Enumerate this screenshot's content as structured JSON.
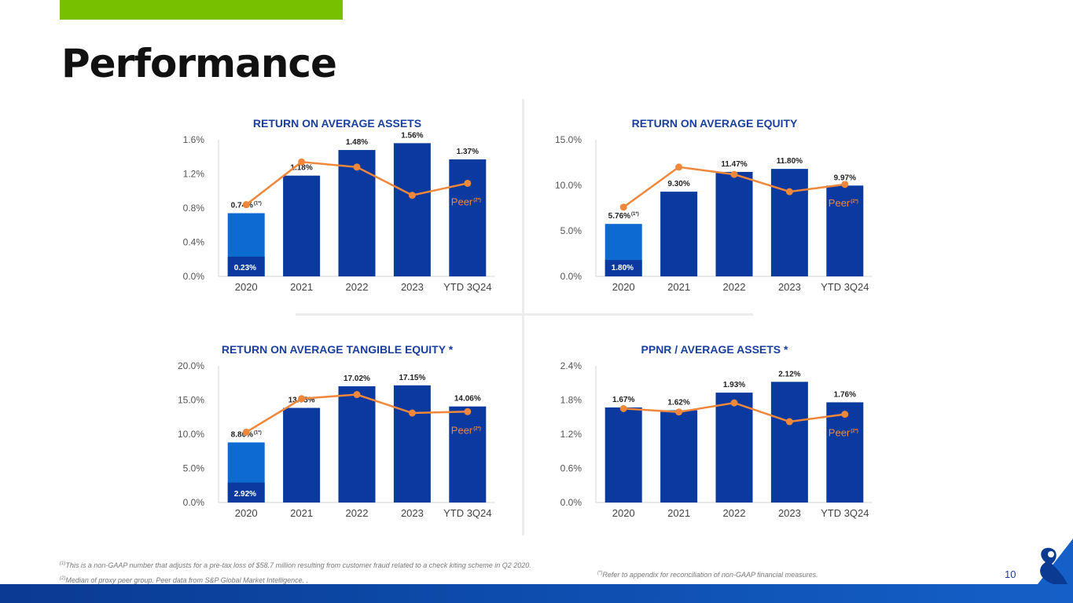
{
  "page": {
    "title": "Performance",
    "page_number": "10",
    "accent_color": "#76c000",
    "bar_color": "#0a3aa0",
    "highlight_color": "#0d6ad1",
    "peer_color": "#f0873a",
    "heading_color": "#1a3f9e"
  },
  "footnotes": {
    "note1_marker": "(1)",
    "note1": "This is a non-GAAP number that adjusts for a pre-tax loss of $58.7 million resulting from customer fraud related to a check kiting scheme in Q2 2020.",
    "note2_marker": "(2)",
    "note2": "Median of proxy peer group. Peer data from S&P Global Market Intelligence. .",
    "note3_marker": "(*)",
    "note3": "Refer to appendix for reconciliation of non-GAAP financial measures."
  },
  "chart_data": [
    {
      "type": "bar",
      "title": "RETURN ON AVERAGE ASSETS",
      "categories": [
        "2020",
        "2021",
        "2022",
        "2023",
        "YTD 3Q24"
      ],
      "ylim": [
        0,
        1.6
      ],
      "yticks": [
        0,
        0.4,
        0.8,
        1.2,
        1.6
      ],
      "ytick_labels": [
        "0.0%",
        "0.4%",
        "0.8%",
        "1.2%",
        "1.6%"
      ],
      "values": [
        0.74,
        1.18,
        1.48,
        1.56,
        1.37
      ],
      "value_labels": [
        "0.74%",
        "1.18%",
        "1.48%",
        "1.56%",
        "1.37%"
      ],
      "first_label_marker": "(1*)",
      "reported_first": 0.23,
      "reported_first_label": "0.23%",
      "peer": [
        0.84,
        1.34,
        1.28,
        0.95,
        1.09
      ],
      "peer_label": "Peer",
      "peer_marker": "(2*)"
    },
    {
      "type": "bar",
      "title": "RETURN ON AVERAGE EQUITY",
      "categories": [
        "2020",
        "2021",
        "2022",
        "2023",
        "YTD 3Q24"
      ],
      "ylim": [
        0,
        15
      ],
      "yticks": [
        0,
        5,
        10,
        15
      ],
      "ytick_labels": [
        "0.0%",
        "5.0%",
        "10.0%",
        "15.0%"
      ],
      "values": [
        5.76,
        9.3,
        11.47,
        11.8,
        9.97
      ],
      "value_labels": [
        "5.76%",
        "9.30%",
        "11.47%",
        "11.80%",
        "9.97%"
      ],
      "first_label_marker": "(1*)",
      "reported_first": 1.8,
      "reported_first_label": "1.80%",
      "peer": [
        7.6,
        12.0,
        11.2,
        9.3,
        10.1
      ],
      "peer_label": "Peer",
      "peer_marker": "(2*)"
    },
    {
      "type": "bar",
      "title": "RETURN ON AVERAGE TANGIBLE EQUITY *",
      "categories": [
        "2020",
        "2021",
        "2022",
        "2023",
        "YTD 3Q24"
      ],
      "ylim": [
        0,
        20
      ],
      "yticks": [
        0,
        5,
        10,
        15,
        20
      ],
      "ytick_labels": [
        "0.0%",
        "5.0%",
        "10.0%",
        "15.0%",
        "20.0%"
      ],
      "values": [
        8.8,
        13.85,
        17.02,
        17.15,
        14.06
      ],
      "value_labels": [
        "8.80%",
        "13.85%",
        "17.02%",
        "17.15%",
        "14.06%"
      ],
      "first_label_marker": "(1*)",
      "reported_first": 2.92,
      "reported_first_label": "2.92%",
      "peer": [
        10.3,
        15.2,
        15.8,
        13.1,
        13.3
      ],
      "peer_label": "Peer",
      "peer_marker": "(2*)"
    },
    {
      "type": "bar",
      "title": "PPNR / AVERAGE ASSETS *",
      "categories": [
        "2020",
        "2021",
        "2022",
        "2023",
        "YTD 3Q24"
      ],
      "ylim": [
        0,
        2.4
      ],
      "yticks": [
        0,
        0.6,
        1.2,
        1.8,
        2.4
      ],
      "ytick_labels": [
        "0.0%",
        "0.6%",
        "1.2%",
        "1.8%",
        "2.4%"
      ],
      "values": [
        1.67,
        1.62,
        1.93,
        2.12,
        1.76
      ],
      "value_labels": [
        "1.67%",
        "1.62%",
        "1.93%",
        "2.12%",
        "1.76%"
      ],
      "peer": [
        1.65,
        1.59,
        1.75,
        1.42,
        1.55
      ],
      "peer_label": "Peer",
      "peer_marker": "(2*)"
    }
  ]
}
